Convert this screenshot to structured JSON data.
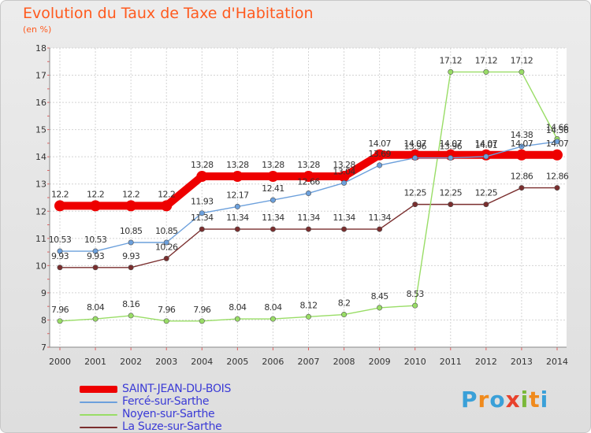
{
  "chart_data": {
    "type": "line",
    "title": "Evolution du Taux de Taxe d'Habitation",
    "subtitle": "(en %)",
    "x": [
      "2000",
      "2001",
      "2002",
      "2003",
      "2004",
      "2005",
      "2006",
      "2007",
      "2008",
      "2009",
      "2010",
      "2011",
      "2012",
      "2013",
      "2014"
    ],
    "ylim": [
      7,
      18
    ],
    "yticks": [
      "7",
      "8",
      "9",
      "10",
      "11",
      "12",
      "13",
      "14",
      "15",
      "16",
      "17",
      "18"
    ],
    "grid": true,
    "legend_position": "bottom-left",
    "series": [
      {
        "name": "SAINT-JEAN-DU-BOIS",
        "color": "#ee0000",
        "values": [
          12.2,
          12.2,
          12.2,
          12.2,
          13.28,
          13.28,
          13.28,
          13.28,
          13.28,
          14.07,
          14.07,
          14.07,
          14.07,
          14.07,
          14.07
        ],
        "labels": [
          "12.2",
          "12.2",
          "12.2",
          "12.2",
          "13.28",
          "13.28",
          "13.28",
          "13.28",
          "13.28",
          "14.07",
          "14.07",
          "14.07",
          "14.07",
          "14.07",
          "14.07"
        ]
      },
      {
        "name": "Fercé-sur-Sarthe",
        "color": "#6ca0dc",
        "values": [
          10.53,
          10.53,
          10.85,
          10.85,
          11.93,
          12.17,
          12.41,
          12.66,
          13.04,
          13.69,
          13.96,
          13.96,
          14.01,
          14.38,
          14.56
        ],
        "labels": [
          "10.53",
          "10.53",
          "10.85",
          "10.85",
          "11.93",
          "12.17",
          "12.41",
          "12.66",
          "13.04",
          "13.69",
          "13.96",
          "13.96",
          "14.01",
          "14.38",
          "14.56"
        ]
      },
      {
        "name": "Noyen-sur-Sarthe",
        "color": "#99dd66",
        "values": [
          7.96,
          8.04,
          8.16,
          7.96,
          7.96,
          8.04,
          8.04,
          8.12,
          8.2,
          8.45,
          8.53,
          17.12,
          17.12,
          17.12,
          14.66
        ],
        "labels": [
          "7.96",
          "8.04",
          "8.16",
          "7.96",
          "7.96",
          "8.04",
          "8.04",
          "8.12",
          "8.2",
          "8.45",
          "8.53",
          "17.12",
          "17.12",
          "17.12",
          "14.66"
        ]
      },
      {
        "name": "La Suze-sur-Sarthe",
        "color": "#7a2e2e",
        "values": [
          9.93,
          9.93,
          9.93,
          10.26,
          11.34,
          11.34,
          11.34,
          11.34,
          11.34,
          11.34,
          12.25,
          12.25,
          12.25,
          12.86,
          12.86
        ],
        "labels": [
          "9.93",
          "9.93",
          "9.93",
          "10.26",
          "11.34",
          "11.34",
          "11.34",
          "11.34",
          "11.34",
          "11.34",
          "12.25",
          "12.25",
          "12.25",
          "12.86",
          "12.86"
        ]
      }
    ]
  },
  "brand": {
    "logo_text": "Proxiti",
    "letter_colors": [
      "#3aa0d8",
      "#f08a1c",
      "#3aa0d8",
      "#e8412c",
      "#7ab83a",
      "#f08a1c",
      "#3aa0d8"
    ]
  }
}
